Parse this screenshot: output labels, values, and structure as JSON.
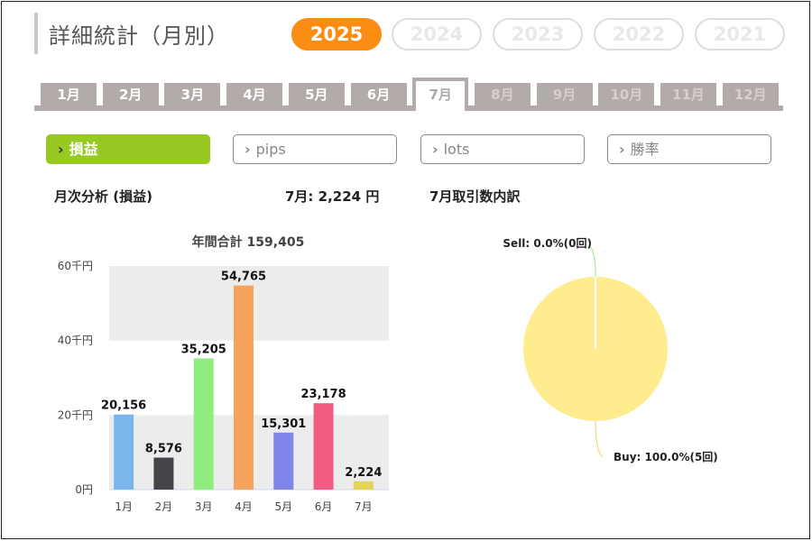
{
  "header": {
    "title": "詳細統計（月別）"
  },
  "years": [
    {
      "label": "2025",
      "active": true
    },
    {
      "label": "2024",
      "active": false
    },
    {
      "label": "2023",
      "active": false
    },
    {
      "label": "2022",
      "active": false
    },
    {
      "label": "2021",
      "active": false
    }
  ],
  "months": [
    "1月",
    "2月",
    "3月",
    "4月",
    "5月",
    "6月",
    "7月",
    "8月",
    "9月",
    "10月",
    "11月",
    "12月"
  ],
  "selected_month_index": 6,
  "metrics": [
    {
      "label": "損益",
      "active": true
    },
    {
      "label": "pips",
      "active": false
    },
    {
      "label": "lots",
      "active": false
    },
    {
      "label": "勝率",
      "active": false
    }
  ],
  "analysis": {
    "label": "月次分析 (損益)",
    "month_value": "7月:  2,224 円",
    "breakdown_label": "7月取引数内訳"
  },
  "chart_data": [
    {
      "type": "bar",
      "title": "年間合計 159,405",
      "categories": [
        "1月",
        "2月",
        "3月",
        "4月",
        "5月",
        "6月",
        "7月"
      ],
      "values": [
        20156,
        8576,
        35205,
        54765,
        15301,
        23178,
        2224
      ],
      "value_labels": [
        "20,156",
        "8,576",
        "35,205",
        "54,765",
        "15,301",
        "23,178",
        "2,224"
      ],
      "colors": [
        "#7cb5ec",
        "#434348",
        "#90ed7d",
        "#f7a35c",
        "#8085e9",
        "#f15c80",
        "#e4d354"
      ],
      "ytick_labels": [
        "0円",
        "20千円",
        "40千円",
        "60千円"
      ],
      "ytick_values": [
        0,
        20000,
        40000,
        60000
      ],
      "ylim": [
        0,
        60000
      ],
      "grid": true
    },
    {
      "type": "pie",
      "slices": [
        {
          "label": "Sell: 0.0%(0回)",
          "value": 0,
          "color": "#90ed7d"
        },
        {
          "label": "Buy: 100.0%(5回)",
          "value": 100,
          "color": "#ffec8f"
        }
      ]
    }
  ]
}
